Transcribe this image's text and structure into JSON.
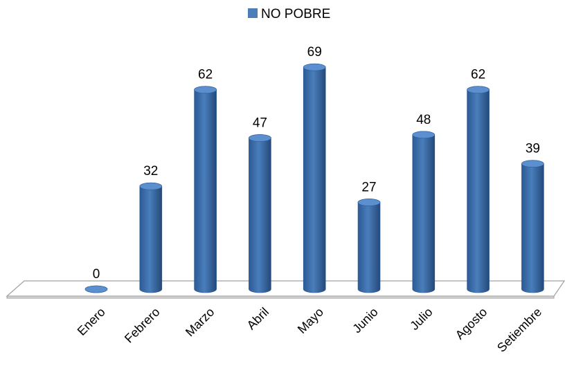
{
  "chart_data": {
    "type": "bar",
    "categories": [
      "Enero",
      "Febrero",
      "Marzo",
      "Abril",
      "Mayo",
      "Junio",
      "Julio",
      "Agosto",
      "Setiembre"
    ],
    "series": [
      {
        "name": "NO POBRE",
        "color": "#4a7ebb",
        "values": [
          0,
          32,
          62,
          47,
          69,
          27,
          48,
          62,
          39
        ]
      }
    ],
    "legend": "top"
  }
}
